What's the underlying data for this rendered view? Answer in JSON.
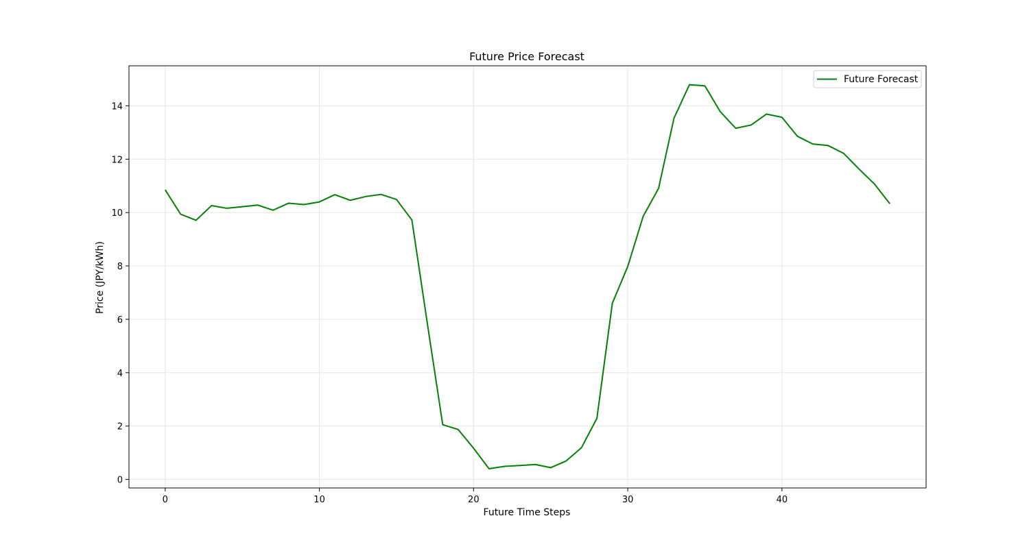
{
  "chart_data": {
    "type": "line",
    "title": "Future Price Forecast",
    "xlabel": "Future Time Steps",
    "ylabel": "Price (JPY/kWh)",
    "xlim": [
      -2.35,
      49.35
    ],
    "ylim": [
      -0.32,
      15.5
    ],
    "xticks": [
      0,
      10,
      20,
      30,
      40
    ],
    "yticks": [
      0,
      2,
      4,
      6,
      8,
      10,
      12,
      14
    ],
    "grid": true,
    "legend_position": "top-right",
    "series": [
      {
        "name": "Future Forecast",
        "color": "#008000",
        "x": [
          0,
          1,
          2,
          3,
          4,
          5,
          6,
          7,
          8,
          9,
          10,
          11,
          12,
          13,
          14,
          15,
          16,
          17,
          18,
          19,
          20,
          21,
          22,
          23,
          24,
          25,
          26,
          27,
          28,
          29,
          30,
          31,
          32,
          33,
          34,
          35,
          36,
          37,
          38,
          39,
          40,
          41,
          42,
          43,
          44,
          45,
          46,
          47
        ],
        "y": [
          10.85,
          9.94,
          9.71,
          10.26,
          10.16,
          10.22,
          10.28,
          10.09,
          10.35,
          10.3,
          10.4,
          10.67,
          10.46,
          10.6,
          10.68,
          10.49,
          9.72,
          5.85,
          2.05,
          1.87,
          1.17,
          0.4,
          0.49,
          0.52,
          0.56,
          0.44,
          0.69,
          1.19,
          2.29,
          6.6,
          7.98,
          9.86,
          10.91,
          13.54,
          14.79,
          14.75,
          13.78,
          13.16,
          13.28,
          13.69,
          13.57,
          12.86,
          12.57,
          12.51,
          12.22,
          11.63,
          11.07,
          10.33
        ]
      }
    ]
  }
}
